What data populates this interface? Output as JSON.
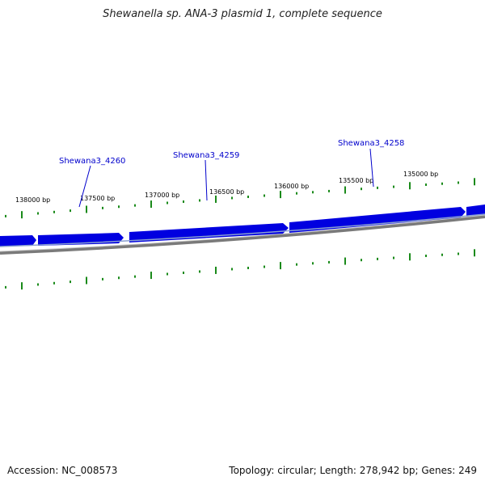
{
  "title": "Shewanella sp. ANA-3 plasmid 1, complete sequence",
  "accession_text": "Accession: NC_008573",
  "stats_text": "Topology: circular; Length: 278,942 bp; Genes: 249",
  "colors": {
    "gene": "#0000e0",
    "gene_shadow": "#8aa0d0",
    "backbone": "#7a7a7a",
    "tick": "#1a8a1a",
    "gene_label": "#0000cc",
    "leader": "#0000cc"
  },
  "ticks": {
    "labels": [
      "138000 bp",
      "137500 bp",
      "137000 bp",
      "136500 bp",
      "136000 bp",
      "135500 bp",
      "135000 bp"
    ]
  },
  "gene_labels": [
    "Shewana3_4260",
    "Shewana3_4259",
    "Shewana3_4258"
  ]
}
